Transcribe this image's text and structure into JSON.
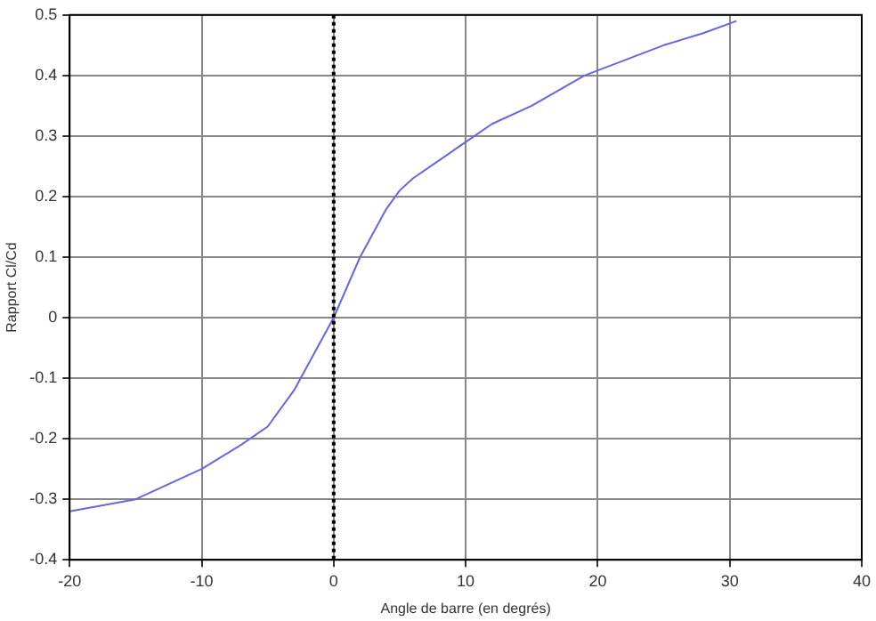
{
  "chart_data": {
    "type": "line",
    "xlabel": "Angle de barre (en degrés)",
    "ylabel": "Rapport Cl/Cd",
    "series": [
      {
        "color": "#6666e0",
        "x": [
          -20,
          -15,
          -10,
          -7,
          -5,
          -3,
          -2,
          -1,
          0,
          1,
          2,
          3,
          4,
          5,
          6,
          8,
          10,
          12,
          15,
          17,
          19,
          22,
          25,
          28,
          30.5
        ],
        "values": [
          -0.32,
          -0.3,
          -0.25,
          -0.21,
          -0.18,
          -0.12,
          -0.08,
          -0.04,
          0,
          0.05,
          0.1,
          0.14,
          0.18,
          0.21,
          0.23,
          0.26,
          0.29,
          0.32,
          0.35,
          0.375,
          0.4,
          0.425,
          0.45,
          0.47,
          0.49
        ]
      }
    ],
    "xlim": [
      -20,
      40
    ],
    "xticks": [
      -20,
      -10,
      0,
      10,
      20,
      30,
      40
    ],
    "ylim": [
      -0.4,
      0.5
    ],
    "yticks": [
      -0.4,
      -0.3,
      -0.2,
      -0.1,
      0,
      0.1,
      0.2,
      0.3,
      0.4,
      0.5
    ],
    "grid": true,
    "legend": false,
    "marker": "none",
    "line_style": "solid",
    "ref_lines": [
      {
        "axis": "x",
        "value": 0,
        "color": "#000000",
        "line_style": "dotted"
      }
    ]
  }
}
